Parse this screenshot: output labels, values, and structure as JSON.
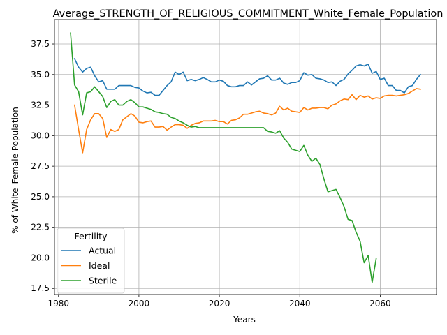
{
  "chart_data": {
    "type": "line",
    "title": "Average_STRENGTH_OF_RELIGIOUS_COMMITMENT_White_Female_Population",
    "xlabel": "Years",
    "ylabel": "% of White_Female Population",
    "xlim": [
      1979,
      2074
    ],
    "ylim": [
      17.0,
      39.5
    ],
    "xticks": [
      1980,
      2000,
      2020,
      2040,
      2060
    ],
    "yticks": [
      17.5,
      20.0,
      22.5,
      25.0,
      27.5,
      30.0,
      32.5,
      35.0,
      37.5
    ],
    "ytick_labels": [
      "17.5",
      "20.0",
      "22.5",
      "25.0",
      "27.5",
      "30.0",
      "32.5",
      "35.0",
      "37.5"
    ],
    "grid": true,
    "legend": {
      "title": "Fertility",
      "placement": "lower-left"
    },
    "series": [
      {
        "name": "Actual",
        "color": "#1f77b4",
        "x": [
          1984,
          1985,
          1986,
          1987,
          1988,
          1989,
          1990,
          1991,
          1992,
          1993,
          1994,
          1995,
          1996,
          1997,
          1998,
          1999,
          2000,
          2001,
          2002,
          2003,
          2004,
          2005,
          2006,
          2007,
          2008,
          2009,
          2010,
          2011,
          2012,
          2013,
          2014,
          2015,
          2016,
          2017,
          2018,
          2019,
          2020,
          2021,
          2022,
          2023,
          2024,
          2025,
          2026,
          2027,
          2028,
          2029,
          2030,
          2031,
          2032,
          2033,
          2034,
          2035,
          2036,
          2037,
          2038,
          2039,
          2040,
          2041,
          2042,
          2043,
          2044,
          2045,
          2046,
          2047,
          2048,
          2049,
          2050,
          2051,
          2052,
          2053,
          2054,
          2055,
          2056,
          2057,
          2058,
          2059,
          2060,
          2061,
          2062,
          2063,
          2064,
          2065,
          2066,
          2067,
          2068,
          2069,
          2070
        ],
        "values": [
          36.3,
          35.6,
          35.2,
          35.5,
          35.6,
          34.9,
          34.4,
          34.5,
          33.8,
          33.8,
          33.8,
          34.1,
          34.1,
          34.1,
          34.1,
          33.95,
          33.9,
          33.65,
          33.5,
          33.55,
          33.3,
          33.3,
          33.7,
          34.1,
          34.4,
          35.2,
          35.0,
          35.2,
          34.5,
          34.6,
          34.5,
          34.6,
          34.75,
          34.6,
          34.4,
          34.4,
          34.55,
          34.45,
          34.1,
          34.0,
          34.0,
          34.1,
          34.1,
          34.4,
          34.15,
          34.4,
          34.65,
          34.7,
          34.9,
          34.55,
          34.55,
          34.7,
          34.3,
          34.2,
          34.35,
          34.35,
          34.5,
          35.15,
          34.95,
          35.0,
          34.7,
          34.65,
          34.55,
          34.35,
          34.4,
          34.1,
          34.45,
          34.6,
          35.05,
          35.35,
          35.7,
          35.8,
          35.7,
          35.85,
          35.1,
          35.25,
          34.6,
          34.7,
          34.1,
          34.1,
          33.7,
          33.7,
          33.5,
          34.0,
          34.1,
          34.6,
          35.0
        ]
      },
      {
        "name": "Ideal",
        "color": "#ff7f0e",
        "x": [
          1984,
          1985,
          1986,
          1987,
          1988,
          1989,
          1990,
          1991,
          1992,
          1993,
          1994,
          1995,
          1996,
          1997,
          1998,
          1999,
          2000,
          2001,
          2002,
          2003,
          2004,
          2005,
          2006,
          2007,
          2008,
          2009,
          2010,
          2011,
          2012,
          2013,
          2014,
          2015,
          2016,
          2017,
          2018,
          2019,
          2020,
          2021,
          2022,
          2023,
          2024,
          2025,
          2026,
          2027,
          2028,
          2029,
          2030,
          2031,
          2032,
          2033,
          2034,
          2035,
          2036,
          2037,
          2038,
          2039,
          2040,
          2041,
          2042,
          2043,
          2044,
          2045,
          2046,
          2047,
          2048,
          2049,
          2050,
          2051,
          2052,
          2053,
          2054,
          2055,
          2056,
          2057,
          2058,
          2059,
          2060,
          2061,
          2062,
          2063,
          2064,
          2065,
          2066,
          2067,
          2068,
          2069,
          2070
        ],
        "values": [
          32.5,
          30.5,
          28.6,
          30.5,
          31.3,
          31.8,
          31.8,
          31.4,
          29.85,
          30.5,
          30.35,
          30.5,
          31.3,
          31.55,
          31.8,
          31.6,
          31.1,
          31.05,
          31.15,
          31.2,
          30.7,
          30.7,
          30.75,
          30.45,
          30.7,
          30.9,
          30.9,
          30.85,
          30.6,
          30.85,
          31.0,
          31.05,
          31.2,
          31.2,
          31.2,
          31.25,
          31.15,
          31.15,
          30.95,
          31.25,
          31.3,
          31.45,
          31.75,
          31.75,
          31.85,
          31.95,
          32.0,
          31.85,
          31.8,
          31.7,
          31.85,
          32.4,
          32.1,
          32.25,
          32.0,
          31.95,
          31.9,
          32.3,
          32.1,
          32.25,
          32.25,
          32.3,
          32.3,
          32.2,
          32.5,
          32.6,
          32.85,
          33.0,
          32.95,
          33.35,
          32.95,
          33.3,
          33.15,
          33.25,
          33.0,
          33.1,
          33.05,
          33.25,
          33.3,
          33.3,
          33.25,
          33.3,
          33.35,
          33.45,
          33.65,
          33.85,
          33.8
        ]
      },
      {
        "name": "Sterile",
        "color": "#2ca02c",
        "x": [
          1983,
          1984,
          1985,
          1986,
          1987,
          1988,
          1989,
          1990,
          1991,
          1992,
          1993,
          1994,
          1995,
          1996,
          1997,
          1998,
          1999,
          2000,
          2001,
          2002,
          2003,
          2004,
          2005,
          2006,
          2007,
          2008,
          2009,
          2010,
          2011,
          2012,
          2013,
          2014,
          2015,
          2016,
          2017,
          2018,
          2019,
          2020,
          2021,
          2022,
          2023,
          2024,
          2025,
          2026,
          2027,
          2028,
          2029,
          2030,
          2031,
          2032,
          2033,
          2034,
          2035,
          2036,
          2037,
          2038,
          2039,
          2040,
          2041,
          2042,
          2043,
          2044,
          2045,
          2046,
          2047,
          2048,
          2049,
          2050,
          2051,
          2052,
          2053,
          2054,
          2055,
          2056,
          2057,
          2058,
          2059
        ],
        "values": [
          38.4,
          34.15,
          33.6,
          31.7,
          33.5,
          33.6,
          34.0,
          33.6,
          33.2,
          32.3,
          32.8,
          32.95,
          32.5,
          32.5,
          32.8,
          32.95,
          32.7,
          32.35,
          32.35,
          32.25,
          32.15,
          31.95,
          31.9,
          31.8,
          31.75,
          31.5,
          31.4,
          31.2,
          31.05,
          30.85,
          30.7,
          30.75,
          30.65,
          30.65,
          30.65,
          30.65,
          30.65,
          30.65,
          30.65,
          30.65,
          30.65,
          30.65,
          30.65,
          30.65,
          30.65,
          30.65,
          30.65,
          30.65,
          30.65,
          30.35,
          30.3,
          30.2,
          30.4,
          29.8,
          29.45,
          28.9,
          28.8,
          28.7,
          29.2,
          28.4,
          27.9,
          28.15,
          27.65,
          26.45,
          25.4,
          25.5,
          25.6,
          24.95,
          24.2,
          23.15,
          23.05,
          22.1,
          21.35,
          19.6,
          20.2,
          18.0,
          19.95
        ]
      }
    ]
  }
}
